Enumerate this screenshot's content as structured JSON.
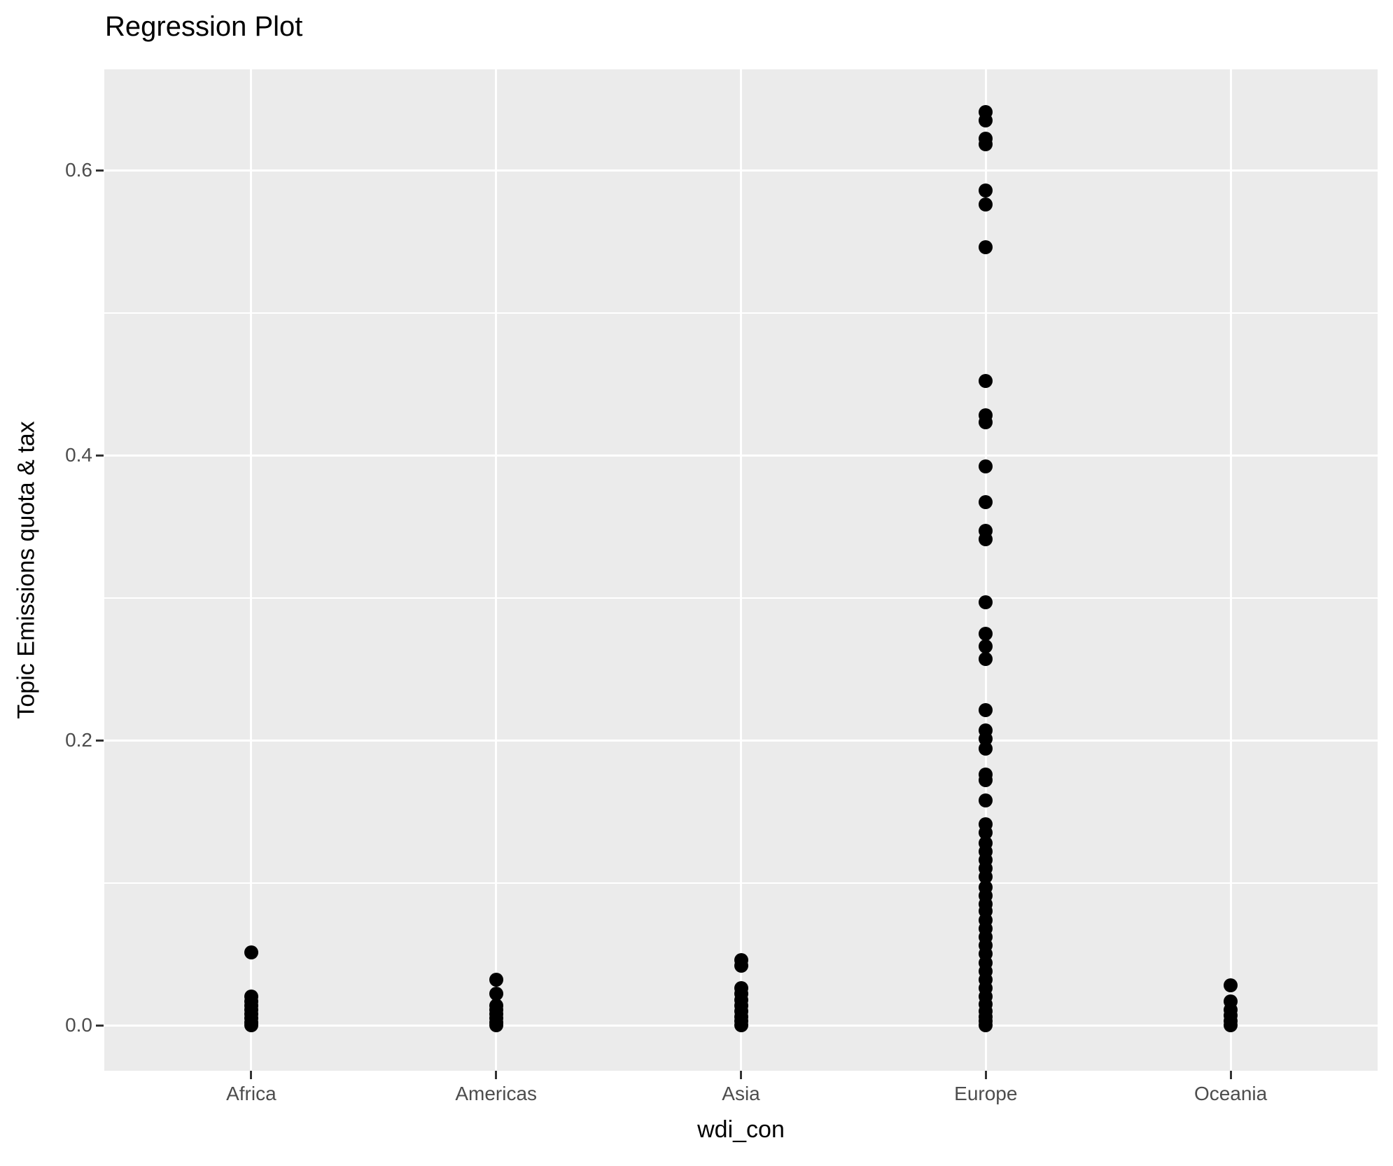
{
  "title": "Regression Plot",
  "x_axis_title": "wdi_con",
  "y_axis_title": "Topic Emissions quota & tax",
  "chart_data": {
    "type": "scatter",
    "title": "Regression Plot",
    "xlabel": "wdi_con",
    "ylabel": "Topic Emissions quota & tax",
    "legend": "none",
    "grid": "white major gridlines at categories and major y ticks, white minor y gridlines",
    "panel_background": "#EBEBEB",
    "gridline_color": "#FFFFFF",
    "point_color": "#000000",
    "axis_text_color": "#4D4D4D",
    "tick_mark_color": "#333333",
    "categories": [
      "Africa",
      "Americas",
      "Asia",
      "Europe",
      "Oceania"
    ],
    "yticks": {
      "labels": [
        "0.0",
        "0.2",
        "0.4",
        "0.6"
      ],
      "values": [
        0.0,
        0.2,
        0.4,
        0.6
      ]
    },
    "yticks_minor": [
      0.1,
      0.3,
      0.5
    ],
    "ylim": [
      -0.0319,
      0.6708
    ],
    "x_expansion_units": 0.6,
    "series": [
      {
        "name": "Africa",
        "values": [
          0.051,
          0.02,
          0.017,
          0.014,
          0.011,
          0.008,
          0.005,
          0.002,
          0.0
        ]
      },
      {
        "name": "Americas",
        "values": [
          0.032,
          0.022,
          0.014,
          0.011,
          0.008,
          0.005,
          0.002,
          0.0
        ]
      },
      {
        "name": "Asia",
        "values": [
          0.046,
          0.042,
          0.026,
          0.022,
          0.018,
          0.014,
          0.01,
          0.006,
          0.003,
          0.0
        ]
      },
      {
        "name": "Europe",
        "values": [
          0.641,
          0.635,
          0.622,
          0.618,
          0.586,
          0.576,
          0.546,
          0.452,
          0.428,
          0.423,
          0.392,
          0.367,
          0.347,
          0.341,
          0.297,
          0.275,
          0.266,
          0.257,
          0.221,
          0.207,
          0.201,
          0.194,
          0.176,
          0.172,
          0.158,
          0.141,
          0.135,
          0.128,
          0.122,
          0.116,
          0.11,
          0.104,
          0.097,
          0.091,
          0.085,
          0.08,
          0.074,
          0.068,
          0.062,
          0.056,
          0.05,
          0.044,
          0.038,
          0.032,
          0.026,
          0.02,
          0.015,
          0.01,
          0.006,
          0.003,
          0.0
        ]
      },
      {
        "name": "Oceania",
        "values": [
          0.028,
          0.017,
          0.011,
          0.007,
          0.003,
          0.0
        ]
      }
    ]
  }
}
